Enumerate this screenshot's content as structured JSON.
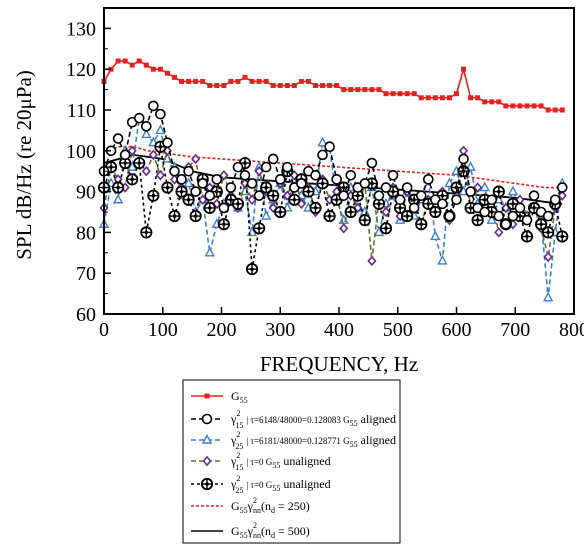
{
  "chart_data": {
    "type": "line",
    "xlabel": "FREQUENCY, Hz",
    "ylabel": "SPL  dB/Hz (re 20μPa)",
    "xlim": [
      0,
      800
    ],
    "ylim": [
      60,
      135
    ],
    "xticks": [
      0,
      100,
      200,
      300,
      400,
      500,
      600,
      700,
      800
    ],
    "yticks": [
      60,
      70,
      80,
      90,
      100,
      110,
      120,
      130
    ],
    "grid": false,
    "legend_position": "bottom",
    "series": [
      {
        "key": "g55",
        "legend": {
          "main": "G",
          "sub": "55"
        },
        "color": "#e8201f",
        "dash": "solid",
        "marker": "square",
        "x": [
          0,
          12,
          24,
          36,
          48,
          60,
          72,
          84,
          96,
          108,
          120,
          132,
          144,
          156,
          168,
          180,
          192,
          204,
          216,
          228,
          240,
          252,
          264,
          276,
          288,
          300,
          312,
          324,
          336,
          348,
          360,
          372,
          384,
          396,
          408,
          420,
          432,
          444,
          456,
          468,
          480,
          492,
          504,
          516,
          528,
          540,
          552,
          564,
          576,
          588,
          600,
          612,
          624,
          636,
          648,
          660,
          672,
          684,
          696,
          708,
          720,
          732,
          744,
          756,
          768,
          780
        ],
        "y": [
          117,
          120,
          122,
          122,
          121,
          122,
          121,
          120,
          120,
          119,
          118,
          117,
          117,
          117,
          117,
          116,
          116,
          116,
          117,
          117,
          118,
          117,
          117,
          117,
          116,
          116,
          116,
          116,
          117,
          117,
          116,
          116,
          116,
          116,
          115,
          115,
          115,
          115,
          115,
          115,
          114,
          114,
          114,
          114,
          114,
          113,
          113,
          113,
          113,
          113,
          114,
          120,
          113,
          113,
          112,
          112,
          112,
          111,
          111,
          111,
          111,
          111,
          111,
          110,
          110,
          110
        ]
      },
      {
        "key": "g15_aligned",
        "legend": {
          "main": "γ",
          "sup": "2",
          "sub": "15",
          "text": "| τ=6148/48000=0.128083  G",
          "sub2": "55",
          "tail": " aligned"
        },
        "color": "#000000",
        "dash": "5,3",
        "marker": "circle",
        "x": [
          0,
          12,
          24,
          36,
          48,
          60,
          72,
          84,
          96,
          108,
          120,
          132,
          144,
          156,
          168,
          180,
          192,
          204,
          216,
          228,
          240,
          252,
          264,
          276,
          288,
          300,
          312,
          324,
          336,
          348,
          360,
          372,
          384,
          396,
          408,
          420,
          432,
          444,
          456,
          468,
          480,
          492,
          504,
          516,
          528,
          540,
          552,
          564,
          576,
          588,
          600,
          612,
          624,
          636,
          648,
          660,
          672,
          684,
          696,
          708,
          720,
          732,
          744,
          756,
          768,
          780
        ],
        "y": [
          95,
          100,
          103,
          99,
          107,
          108,
          106,
          111,
          109,
          102,
          95,
          93,
          95,
          90,
          92,
          89,
          93,
          86,
          91,
          96,
          94,
          92,
          89,
          96,
          98,
          93,
          96,
          91,
          92,
          95,
          94,
          99,
          101,
          93,
          89,
          94,
          91,
          92,
          97,
          89,
          91,
          94,
          88,
          91,
          86,
          89,
          93,
          88,
          87,
          84,
          88,
          98,
          90,
          86,
          85,
          88,
          84,
          82,
          84,
          86,
          83,
          89,
          85,
          84,
          88,
          91
        ]
      },
      {
        "key": "g25_aligned",
        "legend": {
          "main": "γ",
          "sup": "2",
          "sub": "25",
          "text": "| τ=6181/48000=0.128771  G",
          "sub2": "55",
          "tail": " aligned"
        },
        "color": "#3d7fd0",
        "dash": "5,3",
        "marker": "triangle",
        "x": [
          0,
          12,
          24,
          36,
          48,
          60,
          72,
          84,
          96,
          108,
          120,
          132,
          144,
          156,
          168,
          180,
          192,
          204,
          216,
          228,
          240,
          252,
          264,
          276,
          288,
          300,
          312,
          324,
          336,
          348,
          360,
          372,
          384,
          396,
          408,
          420,
          432,
          444,
          456,
          468,
          480,
          492,
          504,
          516,
          528,
          540,
          552,
          564,
          576,
          588,
          600,
          612,
          624,
          636,
          648,
          660,
          672,
          684,
          696,
          708,
          720,
          732,
          744,
          756,
          768,
          780
        ],
        "y": [
          82,
          92,
          88,
          100,
          96,
          108,
          104,
          102,
          105,
          98,
          96,
          89,
          92,
          85,
          88,
          75,
          82,
          87,
          91,
          86,
          90,
          80,
          96,
          84,
          88,
          92,
          86,
          93,
          89,
          86,
          90,
          102,
          101,
          88,
          83,
          91,
          86,
          85,
          91,
          80,
          87,
          89,
          83,
          90,
          84,
          88,
          93,
          79,
          73,
          92,
          95,
          90,
          96,
          87,
          91,
          83,
          88,
          86,
          90,
          87,
          84,
          86,
          83,
          64,
          80,
          92
        ]
      },
      {
        "key": "g15_unaligned",
        "legend": {
          "main": "γ",
          "sup": "2",
          "sub": "15",
          "text": "| τ=0  G",
          "sub2": "55",
          "tail": "  unaligned"
        },
        "color": "#6b6b2a",
        "dash": "5,3",
        "marker": "diamond",
        "x": [
          0,
          12,
          24,
          36,
          48,
          60,
          72,
          84,
          96,
          108,
          120,
          132,
          144,
          156,
          168,
          180,
          192,
          204,
          216,
          228,
          240,
          252,
          264,
          276,
          288,
          300,
          312,
          324,
          336,
          348,
          360,
          372,
          384,
          396,
          408,
          420,
          432,
          444,
          456,
          468,
          480,
          492,
          504,
          516,
          528,
          540,
          552,
          564,
          576,
          588,
          600,
          612,
          624,
          636,
          648,
          660,
          672,
          684,
          696,
          708,
          720,
          732,
          744,
          756,
          768,
          780
        ],
        "y": [
          86,
          96,
          93,
          91,
          100,
          97,
          95,
          99,
          94,
          100,
          93,
          91,
          96,
          98,
          88,
          91,
          87,
          94,
          89,
          86,
          92,
          88,
          95,
          90,
          86,
          92,
          89,
          94,
          87,
          91,
          85,
          93,
          88,
          90,
          81,
          89,
          86,
          92,
          73,
          88,
          85,
          91,
          84,
          90,
          86,
          82,
          88,
          85,
          90,
          83,
          89,
          100,
          86,
          91,
          85,
          88,
          80,
          86,
          82,
          88,
          84,
          86,
          81,
          74,
          86,
          89
        ]
      },
      {
        "key": "g25_unaligned",
        "legend": {
          "main": "γ",
          "sup": "2",
          "sub": "25",
          "text": "| τ=0  G",
          "sub2": "55",
          "tail": "  unaligned"
        },
        "color": "#000000",
        "dash": "3,3",
        "marker": "crosscircle",
        "x": [
          0,
          12,
          24,
          36,
          48,
          60,
          72,
          84,
          96,
          108,
          120,
          132,
          144,
          156,
          168,
          180,
          192,
          204,
          216,
          228,
          240,
          252,
          264,
          276,
          288,
          300,
          312,
          324,
          336,
          348,
          360,
          372,
          384,
          396,
          408,
          420,
          432,
          444,
          456,
          468,
          480,
          492,
          504,
          516,
          528,
          540,
          552,
          564,
          576,
          588,
          600,
          612,
          624,
          636,
          648,
          660,
          672,
          684,
          696,
          708,
          720,
          732,
          744,
          756,
          768,
          780
        ],
        "y": [
          91,
          96,
          91,
          97,
          93,
          97,
          80,
          89,
          101,
          91,
          84,
          90,
          88,
          84,
          93,
          86,
          90,
          82,
          88,
          87,
          97,
          71,
          81,
          91,
          89,
          85,
          95,
          88,
          93,
          90,
          86,
          92,
          84,
          88,
          91,
          85,
          89,
          83,
          92,
          87,
          81,
          90,
          86,
          84,
          88,
          82,
          87,
          85,
          89,
          84,
          91,
          95,
          86,
          83,
          88,
          85,
          90,
          82,
          87,
          84,
          79,
          86,
          82,
          80,
          87,
          79
        ]
      },
      {
        "key": "n250",
        "legend": {
          "main": "G",
          "sub": "55",
          "text2": "γ",
          "sup2": "2",
          "sub3": "nn",
          "tail": "(n",
          "sub4": "d",
          "end": " = 250)"
        },
        "color": "#e8201f",
        "dash": "3,2",
        "marker": "none",
        "x": [
          0,
          25,
          50,
          75,
          100,
          150,
          200,
          250,
          300,
          350,
          400,
          450,
          500,
          550,
          600,
          650,
          700,
          750,
          780
        ],
        "y": [
          100,
          101,
          101,
          100,
          99.5,
          98.5,
          98,
          97.5,
          97,
          96.5,
          96,
          95.5,
          95,
          94.5,
          94,
          93,
          92,
          91,
          91
        ]
      },
      {
        "key": "n500",
        "legend": {
          "main": "G",
          "sub": "55",
          "text2": "γ",
          "sup2": "2",
          "sub3": "nn",
          "tail": "(n",
          "sub4": "d",
          "end": " = 500)"
        },
        "color": "#000000",
        "dash": "solid",
        "marker": "none",
        "x": [
          0,
          25,
          50,
          75,
          100,
          150,
          200,
          250,
          300,
          350,
          400,
          450,
          500,
          550,
          600,
          650,
          700,
          750,
          780
        ],
        "y": [
          97,
          98,
          99,
          98.5,
          98,
          95,
          93.5,
          93,
          92.5,
          92,
          91.5,
          91,
          90.5,
          90,
          89.5,
          89,
          88.5,
          87.5,
          87
        ]
      }
    ]
  }
}
